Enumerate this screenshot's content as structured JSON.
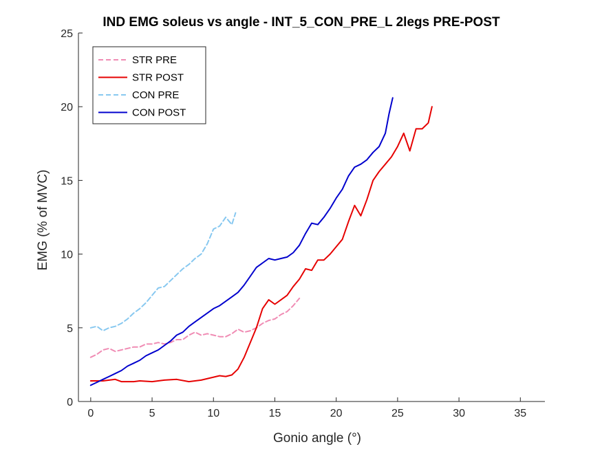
{
  "chart_data": {
    "type": "line",
    "title": "IND EMG soleus vs angle - INT_5_CON_PRE_L 2legs PRE-POST",
    "xlabel": "Gonio angle (°)",
    "ylabel": "EMG (% of MVC)",
    "xlim": [
      -1,
      37
    ],
    "ylim": [
      0,
      25
    ],
    "x_ticks": [
      "0",
      "5",
      "10",
      "15",
      "20",
      "25",
      "30",
      "35"
    ],
    "y_ticks": [
      "0",
      "5",
      "10",
      "15",
      "20",
      "25"
    ],
    "grid": false,
    "legend_position": "top-left",
    "series": [
      {
        "name": "STR PRE",
        "color": "#f08cb4",
        "dashed": true,
        "points": [
          [
            0,
            3.0
          ],
          [
            0.5,
            3.2
          ],
          [
            1.0,
            3.5
          ],
          [
            1.5,
            3.6
          ],
          [
            2.0,
            3.4
          ],
          [
            2.5,
            3.5
          ],
          [
            3.0,
            3.6
          ],
          [
            3.5,
            3.7
          ],
          [
            4.0,
            3.7
          ],
          [
            4.5,
            3.9
          ],
          [
            5.0,
            3.9
          ],
          [
            5.5,
            4.0
          ],
          [
            6.0,
            3.9
          ],
          [
            6.5,
            4.0
          ],
          [
            7.0,
            4.2
          ],
          [
            7.5,
            4.2
          ],
          [
            8.0,
            4.5
          ],
          [
            8.5,
            4.7
          ],
          [
            9.0,
            4.5
          ],
          [
            9.5,
            4.6
          ],
          [
            10.0,
            4.5
          ],
          [
            10.5,
            4.4
          ],
          [
            11.0,
            4.4
          ],
          [
            11.5,
            4.6
          ],
          [
            12.0,
            4.9
          ],
          [
            12.5,
            4.7
          ],
          [
            13.0,
            4.8
          ],
          [
            13.5,
            5.0
          ],
          [
            14.0,
            5.3
          ],
          [
            14.5,
            5.5
          ],
          [
            15.0,
            5.6
          ],
          [
            15.5,
            5.9
          ],
          [
            16.0,
            6.1
          ],
          [
            16.5,
            6.5
          ],
          [
            17.0,
            7.0
          ]
        ]
      },
      {
        "name": "STR POST",
        "color": "#e60000",
        "dashed": false,
        "points": [
          [
            0,
            1.4
          ],
          [
            1.0,
            1.4
          ],
          [
            2.0,
            1.5
          ],
          [
            2.5,
            1.35
          ],
          [
            3.5,
            1.35
          ],
          [
            4.0,
            1.4
          ],
          [
            5.0,
            1.35
          ],
          [
            6.0,
            1.45
          ],
          [
            7.0,
            1.5
          ],
          [
            8.0,
            1.35
          ],
          [
            9.0,
            1.45
          ],
          [
            10.0,
            1.65
          ],
          [
            10.5,
            1.75
          ],
          [
            11.0,
            1.7
          ],
          [
            11.5,
            1.8
          ],
          [
            12.0,
            2.2
          ],
          [
            12.5,
            3.0
          ],
          [
            13.0,
            4.0
          ],
          [
            13.5,
            5.0
          ],
          [
            14.0,
            6.3
          ],
          [
            14.5,
            6.9
          ],
          [
            15.0,
            6.6
          ],
          [
            15.5,
            6.9
          ],
          [
            16.0,
            7.2
          ],
          [
            16.5,
            7.8
          ],
          [
            17.0,
            8.3
          ],
          [
            17.5,
            9.0
          ],
          [
            18.0,
            8.9
          ],
          [
            18.5,
            9.6
          ],
          [
            19.0,
            9.6
          ],
          [
            19.5,
            10.0
          ],
          [
            20.0,
            10.5
          ],
          [
            20.5,
            11.0
          ],
          [
            21.0,
            12.2
          ],
          [
            21.5,
            13.3
          ],
          [
            22.0,
            12.6
          ],
          [
            22.5,
            13.7
          ],
          [
            23.0,
            15.0
          ],
          [
            23.5,
            15.6
          ],
          [
            24.0,
            16.1
          ],
          [
            24.5,
            16.6
          ],
          [
            25.0,
            17.3
          ],
          [
            25.5,
            18.2
          ],
          [
            26.0,
            17.0
          ],
          [
            26.5,
            18.5
          ],
          [
            27.0,
            18.5
          ],
          [
            27.5,
            18.9
          ],
          [
            27.8,
            20.0
          ]
        ]
      },
      {
        "name": "CON PRE",
        "color": "#87c8f0",
        "dashed": true,
        "points": [
          [
            0,
            5.0
          ],
          [
            0.5,
            5.1
          ],
          [
            1.0,
            4.8
          ],
          [
            1.5,
            5.0
          ],
          [
            2.0,
            5.1
          ],
          [
            2.5,
            5.3
          ],
          [
            3.0,
            5.6
          ],
          [
            3.5,
            6.0
          ],
          [
            4.0,
            6.3
          ],
          [
            4.5,
            6.7
          ],
          [
            5.0,
            7.2
          ],
          [
            5.5,
            7.7
          ],
          [
            6.0,
            7.8
          ],
          [
            6.5,
            8.2
          ],
          [
            7.0,
            8.6
          ],
          [
            7.5,
            9.0
          ],
          [
            8.0,
            9.3
          ],
          [
            8.5,
            9.7
          ],
          [
            9.0,
            10.0
          ],
          [
            9.5,
            10.7
          ],
          [
            10.0,
            11.7
          ],
          [
            10.5,
            11.9
          ],
          [
            11.0,
            12.5
          ],
          [
            11.5,
            12.0
          ],
          [
            11.8,
            12.8
          ]
        ]
      },
      {
        "name": "CON POST",
        "color": "#0000cd",
        "dashed": false,
        "points": [
          [
            0,
            1.1
          ],
          [
            0.5,
            1.3
          ],
          [
            1.0,
            1.5
          ],
          [
            1.5,
            1.7
          ],
          [
            2.0,
            1.9
          ],
          [
            2.5,
            2.1
          ],
          [
            3.0,
            2.4
          ],
          [
            3.5,
            2.6
          ],
          [
            4.0,
            2.8
          ],
          [
            4.5,
            3.1
          ],
          [
            5.0,
            3.3
          ],
          [
            5.5,
            3.5
          ],
          [
            6.0,
            3.8
          ],
          [
            6.5,
            4.1
          ],
          [
            7.0,
            4.5
          ],
          [
            7.5,
            4.7
          ],
          [
            8.0,
            5.1
          ],
          [
            8.5,
            5.4
          ],
          [
            9.0,
            5.7
          ],
          [
            9.5,
            6.0
          ],
          [
            10.0,
            6.3
          ],
          [
            10.5,
            6.5
          ],
          [
            11.0,
            6.8
          ],
          [
            11.5,
            7.1
          ],
          [
            12.0,
            7.4
          ],
          [
            12.5,
            7.9
          ],
          [
            13.0,
            8.5
          ],
          [
            13.5,
            9.1
          ],
          [
            14.0,
            9.4
          ],
          [
            14.5,
            9.7
          ],
          [
            15.0,
            9.6
          ],
          [
            15.5,
            9.7
          ],
          [
            16.0,
            9.8
          ],
          [
            16.5,
            10.1
          ],
          [
            17.0,
            10.6
          ],
          [
            17.5,
            11.4
          ],
          [
            18.0,
            12.1
          ],
          [
            18.5,
            12.0
          ],
          [
            19.0,
            12.5
          ],
          [
            19.5,
            13.1
          ],
          [
            20.0,
            13.8
          ],
          [
            20.5,
            14.4
          ],
          [
            21.0,
            15.3
          ],
          [
            21.5,
            15.9
          ],
          [
            22.0,
            16.1
          ],
          [
            22.5,
            16.4
          ],
          [
            23.0,
            16.9
          ],
          [
            23.5,
            17.3
          ],
          [
            24.0,
            18.2
          ],
          [
            24.3,
            19.5
          ],
          [
            24.6,
            20.6
          ]
        ]
      }
    ]
  }
}
